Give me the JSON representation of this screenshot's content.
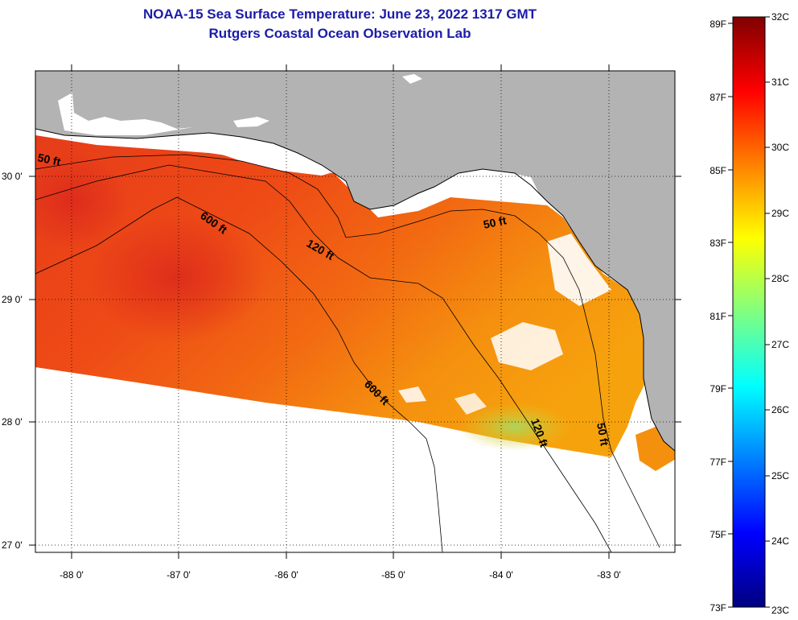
{
  "title": {
    "line1": "NOAA-15 Sea Surface Temperature:  June 23, 2022 1317 GMT",
    "line2": "Rutgers Coastal Ocean Observation Lab"
  },
  "map": {
    "lon_ticks": [
      "-88 0'",
      "-87 0'",
      "-86 0'",
      "-85 0'",
      "-84 0'",
      "-83 0'"
    ],
    "lat_ticks": [
      "30 0'",
      "29 0'",
      "28 0'",
      "27 0'"
    ],
    "depth_labels": [
      "50 ft",
      "600 ft",
      "120 ft",
      "50 ft",
      "600 ft",
      "120 ft",
      "50 ft"
    ]
  },
  "colorbar": {
    "f_labels": [
      "89F",
      "87F",
      "85F",
      "83F",
      "81F",
      "79F",
      "77F",
      "75F",
      "73F"
    ],
    "c_labels": [
      "32C",
      "31C",
      "30C",
      "29C",
      "28C",
      "27C",
      "26C",
      "25C",
      "24C",
      "23C"
    ],
    "colors": [
      "#000080",
      "#0000ff",
      "#0080ff",
      "#00ffff",
      "#80ff80",
      "#ffff00",
      "#ff8000",
      "#ff0000",
      "#800000"
    ]
  },
  "colors": {
    "land": "#b3b3b3",
    "title": "#1c1ca8"
  }
}
